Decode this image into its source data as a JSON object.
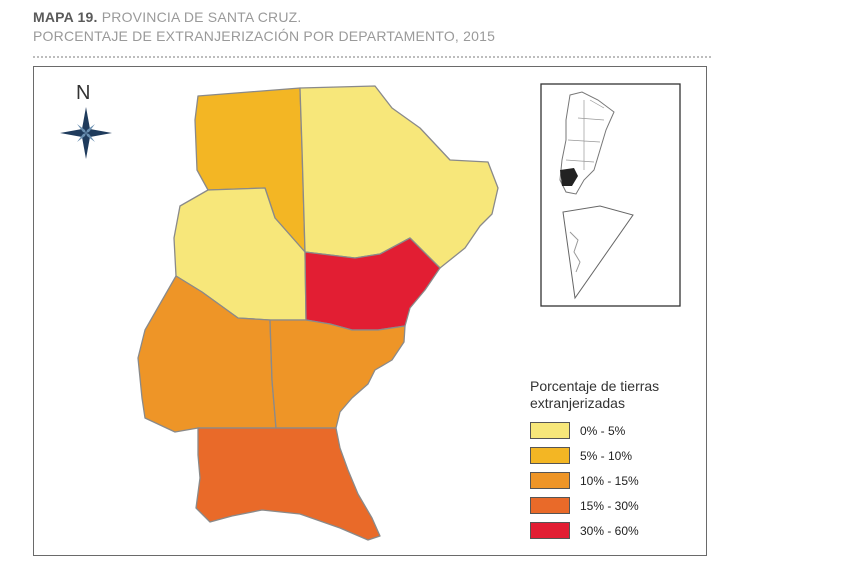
{
  "header": {
    "map_number": "MAPA 19.",
    "province": "PROVINCIA DE SANTA CRUZ.",
    "subtitle": "PORCENTAJE DE EXTRANJERIZACIÓN POR DEPARTAMENTO, 2015"
  },
  "compass": {
    "label": "N",
    "icon": "compass-rose-icon"
  },
  "legend": {
    "title_line1": "Porcentaje de tierras",
    "title_line2": "extranjerizadas",
    "items": [
      {
        "label": "0% - 5%",
        "color": "#f7e77a"
      },
      {
        "label": "5% - 10%",
        "color": "#f3b624"
      },
      {
        "label": "10% - 15%",
        "color": "#ee9527"
      },
      {
        "label": "15% - 30%",
        "color": "#e96a29"
      },
      {
        "label": "30% - 60%",
        "color": "#e21e33"
      }
    ]
  },
  "departments": [
    {
      "id": "lago-buenos-aires",
      "class": "5% - 10%",
      "color": "#f3b624"
    },
    {
      "id": "deseado",
      "class": "0% - 5%",
      "color": "#f7e77a"
    },
    {
      "id": "rio-chico",
      "class": "0% - 5%",
      "color": "#f7e77a"
    },
    {
      "id": "magallanes",
      "class": "30% - 60%",
      "color": "#e21e33"
    },
    {
      "id": "lago-argentino",
      "class": "10% - 15%",
      "color": "#ee9527"
    },
    {
      "id": "corpen-aike",
      "class": "10% - 15%",
      "color": "#ee9527"
    },
    {
      "id": "guer-aike",
      "class": "15% - 30%",
      "color": "#e96a29"
    }
  ],
  "inset": {
    "icon": "argentina-locator-icon",
    "highlight_color": "#222222"
  }
}
